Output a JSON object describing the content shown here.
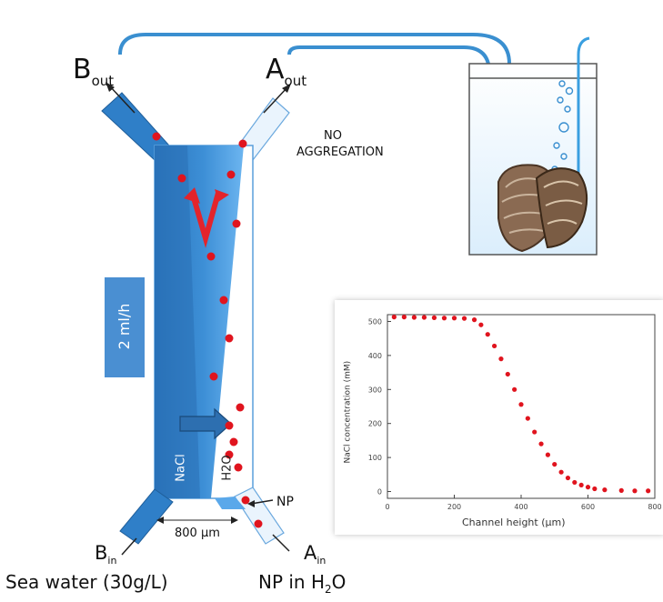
{
  "labels": {
    "b_out": "B",
    "b_out_sub": "out",
    "a_out": "A",
    "a_out_sub": "out",
    "no_aggregation_1": "NO",
    "no_aggregation_2": "AGGREGATION",
    "flow_rate": "2 ml/h",
    "nacl": "NaCl",
    "h2o": "H2O",
    "np_arrow": "NP",
    "width": "800 µm",
    "b_in": "B",
    "b_in_sub": "in",
    "a_in": "A",
    "a_in_sub": "in",
    "sea_water": "Sea water (30g/L)",
    "np_in": "NP in H",
    "np_in_sub": "2",
    "np_in_end": "O",
    "velocity": "V"
  },
  "colors": {
    "channel_dark": "#2f7fc8",
    "channel_light": "#5aa8ea",
    "particle": "#e0141e",
    "tube": "#3a8fd0",
    "arrow_red": "#e3242b"
  },
  "chart_data": {
    "type": "scatter",
    "title": "",
    "xlabel": "Channel height (µm)",
    "ylabel": "NaCl concentration (mM)",
    "xlim": [
      0,
      800
    ],
    "ylim": [
      -20,
      520
    ],
    "xticks": [
      "0",
      "200",
      "400",
      "600",
      "800"
    ],
    "yticks": [
      "0",
      "100",
      "200",
      "300",
      "400",
      "500"
    ],
    "x": [
      20,
      50,
      80,
      110,
      140,
      170,
      200,
      230,
      260,
      280,
      300,
      320,
      340,
      360,
      380,
      400,
      420,
      440,
      460,
      480,
      500,
      520,
      540,
      560,
      580,
      600,
      620,
      650,
      700,
      740,
      780
    ],
    "y": [
      513,
      513,
      512,
      512,
      511,
      510,
      510,
      509,
      505,
      490,
      462,
      428,
      390,
      345,
      300,
      256,
      215,
      175,
      140,
      108,
      80,
      57,
      40,
      27,
      19,
      13,
      8,
      5,
      3,
      2,
      2
    ]
  }
}
